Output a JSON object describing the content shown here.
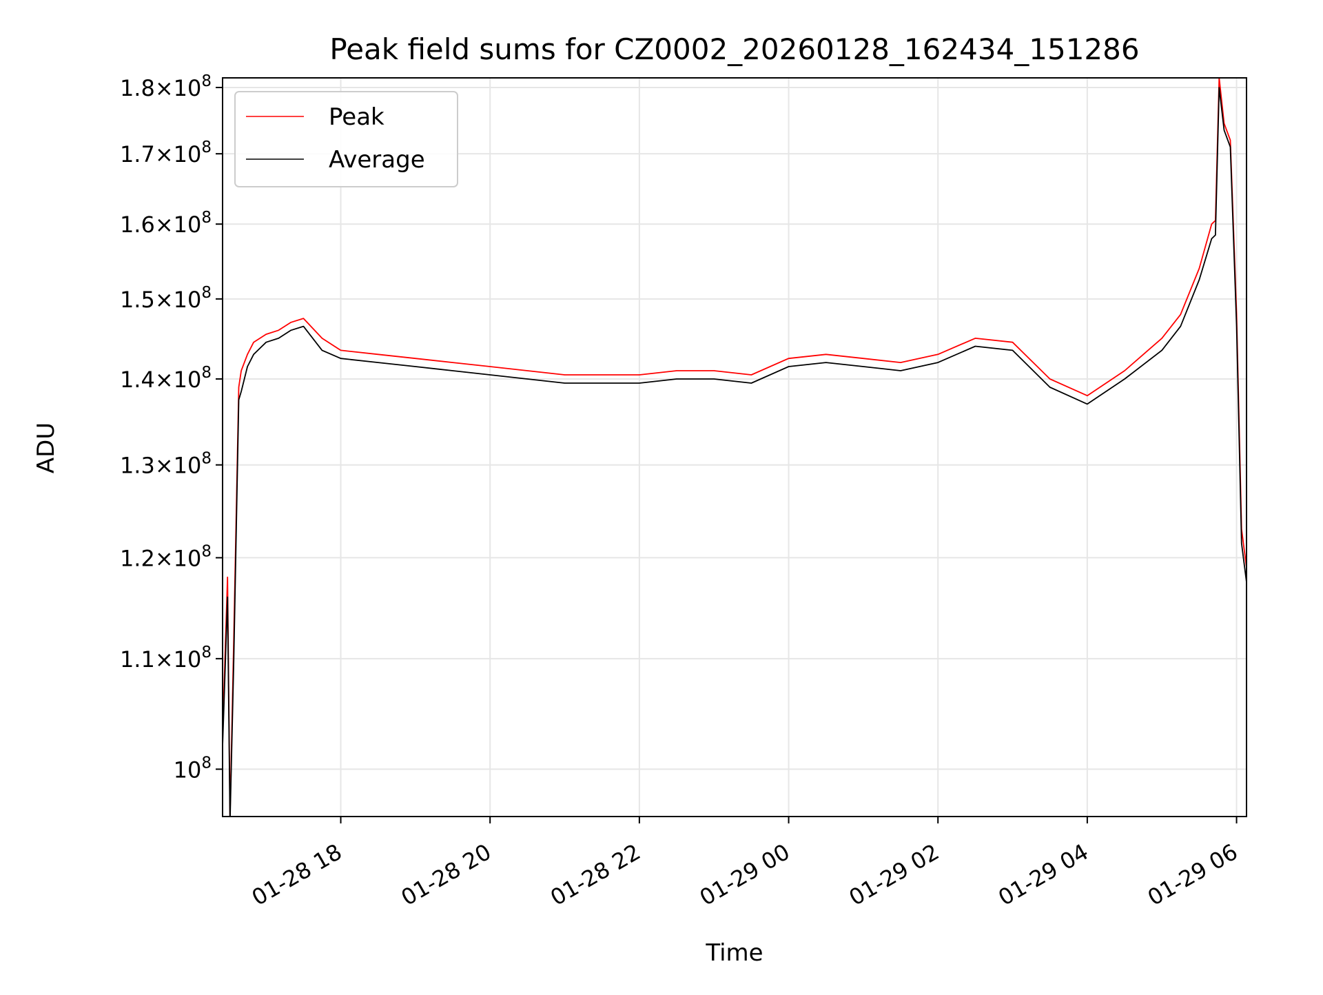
{
  "chart_data": {
    "type": "line",
    "title": "Peak field sums for CZ0002_20260128_162434_151286",
    "xlabel": "Time",
    "ylabel": "ADU",
    "y_scale": "log",
    "ylim": [
      96000000,
      181500000
    ],
    "xlim": [
      "2026-01-28 16:25",
      "2026-01-29 06:08"
    ],
    "grid": true,
    "legend_position": "top-left",
    "x_ticks": [
      {
        "value": "2026-01-28 18:00",
        "label": "01-28 18"
      },
      {
        "value": "2026-01-28 20:00",
        "label": "01-28 20"
      },
      {
        "value": "2026-01-28 22:00",
        "label": "01-28 22"
      },
      {
        "value": "2026-01-29 00:00",
        "label": "01-29 00"
      },
      {
        "value": "2026-01-29 02:00",
        "label": "01-29 02"
      },
      {
        "value": "2026-01-29 04:00",
        "label": "01-29 04"
      },
      {
        "value": "2026-01-29 06:00",
        "label": "01-29 06"
      }
    ],
    "y_ticks": [
      {
        "value": 100000000,
        "mantissa": "",
        "exponent": "8"
      },
      {
        "value": 110000000,
        "mantissa": "1.1",
        "exponent": "8"
      },
      {
        "value": 120000000,
        "mantissa": "1.2",
        "exponent": "8"
      },
      {
        "value": 130000000,
        "mantissa": "1.3",
        "exponent": "8"
      },
      {
        "value": 140000000,
        "mantissa": "1.4",
        "exponent": "8"
      },
      {
        "value": 150000000,
        "mantissa": "1.5",
        "exponent": "8"
      },
      {
        "value": 160000000,
        "mantissa": "1.6",
        "exponent": "8"
      },
      {
        "value": 170000000,
        "mantissa": "1.7",
        "exponent": "8"
      },
      {
        "value": 180000000,
        "mantissa": "1.8",
        "exponent": "8"
      }
    ],
    "series": [
      {
        "name": "Peak",
        "color": "#ff0000",
        "x": [
          "2026-01-28 16:25",
          "2026-01-28 16:29",
          "2026-01-28 16:31",
          "2026-01-28 16:34",
          "2026-01-28 16:38",
          "2026-01-28 16:40",
          "2026-01-28 16:45",
          "2026-01-28 16:50",
          "2026-01-28 17:00",
          "2026-01-28 17:10",
          "2026-01-28 17:20",
          "2026-01-28 17:30",
          "2026-01-28 17:45",
          "2026-01-28 18:00",
          "2026-01-28 18:30",
          "2026-01-28 19:00",
          "2026-01-28 19:30",
          "2026-01-28 20:00",
          "2026-01-28 20:30",
          "2026-01-28 21:00",
          "2026-01-28 21:30",
          "2026-01-28 22:00",
          "2026-01-28 22:30",
          "2026-01-28 23:00",
          "2026-01-28 23:30",
          "2026-01-29 00:00",
          "2026-01-29 00:30",
          "2026-01-29 01:00",
          "2026-01-29 01:30",
          "2026-01-29 02:00",
          "2026-01-29 02:30",
          "2026-01-29 03:00",
          "2026-01-29 03:30",
          "2026-01-29 04:00",
          "2026-01-29 04:30",
          "2026-01-29 05:00",
          "2026-01-29 05:15",
          "2026-01-29 05:30",
          "2026-01-29 05:40",
          "2026-01-29 05:43",
          "2026-01-29 05:46",
          "2026-01-29 05:50",
          "2026-01-29 05:55",
          "2026-01-29 06:00",
          "2026-01-29 06:04",
          "2026-01-29 06:08"
        ],
        "values": [
          103000000,
          118000000,
          96000000,
          112000000,
          139000000,
          141000000,
          143000000,
          144500000,
          145500000,
          146000000,
          147000000,
          147500000,
          145000000,
          143500000,
          143000000,
          142500000,
          142000000,
          141500000,
          141000000,
          140500000,
          140500000,
          140500000,
          141000000,
          141000000,
          140500000,
          142500000,
          143000000,
          142500000,
          142000000,
          143000000,
          145000000,
          144500000,
          140000000,
          138000000,
          141000000,
          145000000,
          148000000,
          154000000,
          160000000,
          160500000,
          181500000,
          174500000,
          172000000,
          148000000,
          123000000,
          119000000
        ]
      },
      {
        "name": "Average",
        "color": "#000000",
        "x": [
          "2026-01-28 16:25",
          "2026-01-28 16:29",
          "2026-01-28 16:31",
          "2026-01-28 16:34",
          "2026-01-28 16:38",
          "2026-01-28 16:40",
          "2026-01-28 16:45",
          "2026-01-28 16:50",
          "2026-01-28 17:00",
          "2026-01-28 17:10",
          "2026-01-28 17:20",
          "2026-01-28 17:30",
          "2026-01-28 17:45",
          "2026-01-28 18:00",
          "2026-01-28 18:30",
          "2026-01-28 19:00",
          "2026-01-28 19:30",
          "2026-01-28 20:00",
          "2026-01-28 20:30",
          "2026-01-28 21:00",
          "2026-01-28 21:30",
          "2026-01-28 22:00",
          "2026-01-28 22:30",
          "2026-01-28 23:00",
          "2026-01-28 23:30",
          "2026-01-29 00:00",
          "2026-01-29 00:30",
          "2026-01-29 01:00",
          "2026-01-29 01:30",
          "2026-01-29 02:00",
          "2026-01-29 02:30",
          "2026-01-29 03:00",
          "2026-01-29 03:30",
          "2026-01-29 04:00",
          "2026-01-29 04:30",
          "2026-01-29 05:00",
          "2026-01-29 05:15",
          "2026-01-29 05:30",
          "2026-01-29 05:40",
          "2026-01-29 05:43",
          "2026-01-29 05:46",
          "2026-01-29 05:50",
          "2026-01-29 05:55",
          "2026-01-29 06:00",
          "2026-01-29 06:04",
          "2026-01-29 06:08"
        ],
        "values": [
          102000000,
          116000000,
          95500000,
          110000000,
          137500000,
          138500000,
          141500000,
          143000000,
          144500000,
          145000000,
          146000000,
          146500000,
          143500000,
          142500000,
          142000000,
          141500000,
          141000000,
          140500000,
          140000000,
          139500000,
          139500000,
          139500000,
          140000000,
          140000000,
          139500000,
          141500000,
          142000000,
          141500000,
          141000000,
          142000000,
          144000000,
          143500000,
          139000000,
          137000000,
          140000000,
          143500000,
          146500000,
          152500000,
          158000000,
          158500000,
          180000000,
          173500000,
          171000000,
          146500000,
          121500000,
          117500000
        ]
      }
    ]
  }
}
